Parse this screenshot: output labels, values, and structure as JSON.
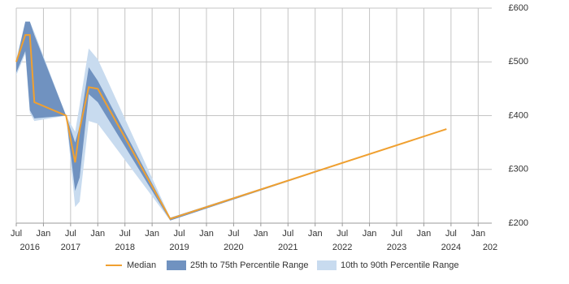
{
  "chart_data": {
    "type": "line",
    "x": [
      "2016-07",
      "2016-09",
      "2016-10",
      "2016-11",
      "2017-06",
      "2017-08",
      "2017-09",
      "2017-11",
      "2018-01",
      "2019-05",
      "2024-06"
    ],
    "series": [
      {
        "name": "Median",
        "color": "#f0a030",
        "values": [
          500,
          550,
          550,
          425,
          400,
          313,
          375,
          453,
          450,
          208,
          375
        ]
      },
      {
        "name": "25th to 75th Percentile Range",
        "color": "#7092c0",
        "low": [
          480,
          520,
          410,
          395,
          400,
          260,
          285,
          440,
          425,
          205,
          375
        ],
        "high": [
          500,
          575,
          575,
          550,
          400,
          350,
          380,
          490,
          465,
          210,
          375
        ]
      },
      {
        "name": "10th to 90th Percentile Range",
        "color": "#c8dbef",
        "low": [
          475,
          515,
          405,
          390,
          400,
          230,
          240,
          390,
          385,
          205,
          375
        ],
        "high": [
          505,
          575,
          575,
          555,
          400,
          370,
          420,
          525,
          505,
          210,
          375
        ]
      }
    ],
    "ylim": [
      200,
      600
    ],
    "yticks": [
      {
        "value": 200,
        "label": "£200"
      },
      {
        "value": 300,
        "label": "£300"
      },
      {
        "value": 400,
        "label": "£400"
      },
      {
        "value": 500,
        "label": "£500"
      },
      {
        "value": 600,
        "label": "£600"
      }
    ],
    "xlim": [
      "2016-07",
      "2025-04"
    ],
    "xticks": [
      {
        "value": "2016-07",
        "label": "Jul"
      },
      {
        "value": "2017-01",
        "label": "Jan"
      },
      {
        "value": "2017-07",
        "label": "Jul"
      },
      {
        "value": "2018-01",
        "label": "Jan"
      },
      {
        "value": "2018-07",
        "label": "Jul"
      },
      {
        "value": "2019-01",
        "label": "Jan"
      },
      {
        "value": "2019-07",
        "label": "Jul"
      },
      {
        "value": "2020-01",
        "label": "Jan"
      },
      {
        "value": "2020-07",
        "label": "Jul"
      },
      {
        "value": "2021-01",
        "label": "Jan"
      },
      {
        "value": "2021-07",
        "label": "Jul"
      },
      {
        "value": "2022-01",
        "label": "Jan"
      },
      {
        "value": "2022-07",
        "label": "Jul"
      },
      {
        "value": "2023-01",
        "label": "Jan"
      },
      {
        "value": "2023-07",
        "label": "Jul"
      },
      {
        "value": "2024-01",
        "label": "Jan"
      },
      {
        "value": "2024-07",
        "label": "Jul"
      },
      {
        "value": "2025-01",
        "label": "Jan"
      }
    ],
    "year_labels": [
      {
        "value": "2016-10",
        "label": "2016"
      },
      {
        "value": "2017-07",
        "label": "2017"
      },
      {
        "value": "2018-07",
        "label": "2018"
      },
      {
        "value": "2019-07",
        "label": "2019"
      },
      {
        "value": "2020-07",
        "label": "2020"
      },
      {
        "value": "2021-07",
        "label": "2021"
      },
      {
        "value": "2022-07",
        "label": "2022"
      },
      {
        "value": "2023-07",
        "label": "2023"
      },
      {
        "value": "2024-07",
        "label": "2024"
      },
      {
        "value": "2025-04",
        "label": "202"
      }
    ],
    "grid": true
  }
}
